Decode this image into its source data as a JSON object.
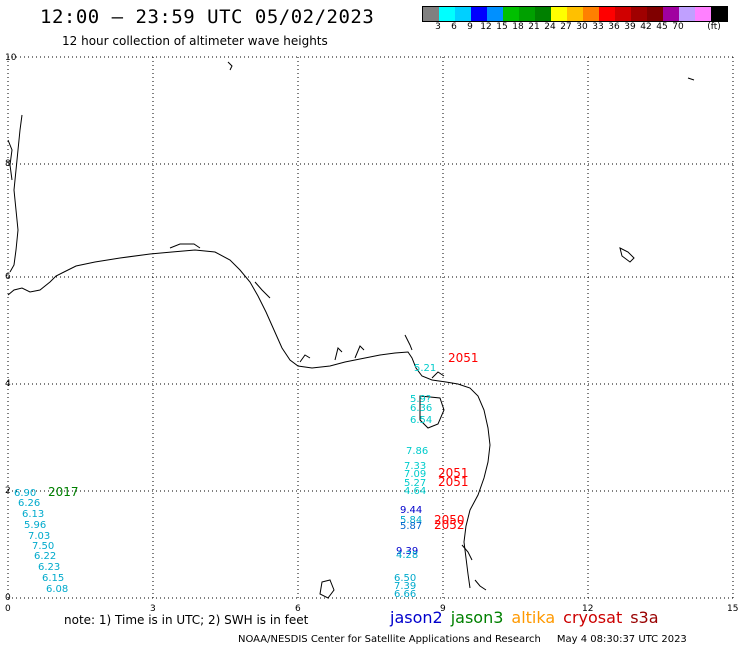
{
  "header": {
    "title": "12:00 – 23:59 UTC 05/02/2023",
    "subtitle": "12 hour collection of altimeter wave heights"
  },
  "colorbar": {
    "colors": [
      "#808080",
      "#00ffff",
      "#00d0ff",
      "#0000ff",
      "#0090ff",
      "#00c000",
      "#00a000",
      "#008000",
      "#ffff00",
      "#ffc000",
      "#ff8000",
      "#ff0000",
      "#d00000",
      "#a00000",
      "#800000",
      "#a000a0",
      "#c0a0ff",
      "#ff80ff",
      "#000000"
    ],
    "labels": [
      "3",
      "6",
      "9",
      "12",
      "15",
      "18",
      "21",
      "24",
      "27",
      "30",
      "33",
      "36",
      "39",
      "42",
      "45",
      "70",
      "(ft)"
    ]
  },
  "axes": {
    "x_ticks": [
      "0",
      "3",
      "6",
      "9",
      "12",
      "15"
    ],
    "y_ticks": [
      "0",
      "2",
      "4",
      "6",
      "8",
      "10"
    ]
  },
  "observations": {
    "jason3_color": "#00cccc",
    "jason2_color": "#0000cc",
    "jason3_dark_color": "#0088aa",
    "cryosat_color": "#ff0000",
    "green_color": "#008000",
    "cyan_values": [
      "5.21",
      "5.9?",
      "6.36",
      "6.54",
      "7.86",
      "7.33",
      "7.09",
      "5.27",
      "4.64",
      "5.84",
      "5.87",
      "4.28",
      "6.50",
      "7.39",
      "6.66",
      "6.90",
      "6.26",
      "6.13",
      "5.96",
      "7.03",
      "7.50",
      "6.22",
      "6.23",
      "6.15",
      "6.08"
    ],
    "blue_values": [
      "9.44",
      "9.39"
    ],
    "red_values": [
      "2051",
      "2051",
      "2051",
      "2050",
      "2052"
    ],
    "green_values": [
      "2017"
    ]
  },
  "footer": {
    "note": "note: 1) Time is in UTC; 2) SWH is in feet",
    "legend": [
      {
        "name": "jason2",
        "color": "#0000cc"
      },
      {
        "name": "jason3",
        "color": "#008000"
      },
      {
        "name": "altika",
        "color": "#ff9900"
      },
      {
        "name": "cryosat",
        "color": "#cc0000"
      },
      {
        "name": "s3a",
        "color": "#990000"
      }
    ],
    "credit": "NOAA/NESDIS Center for Satellite Applications and Research",
    "timestamp": "May  4 08:30:37 UTC 2023"
  }
}
